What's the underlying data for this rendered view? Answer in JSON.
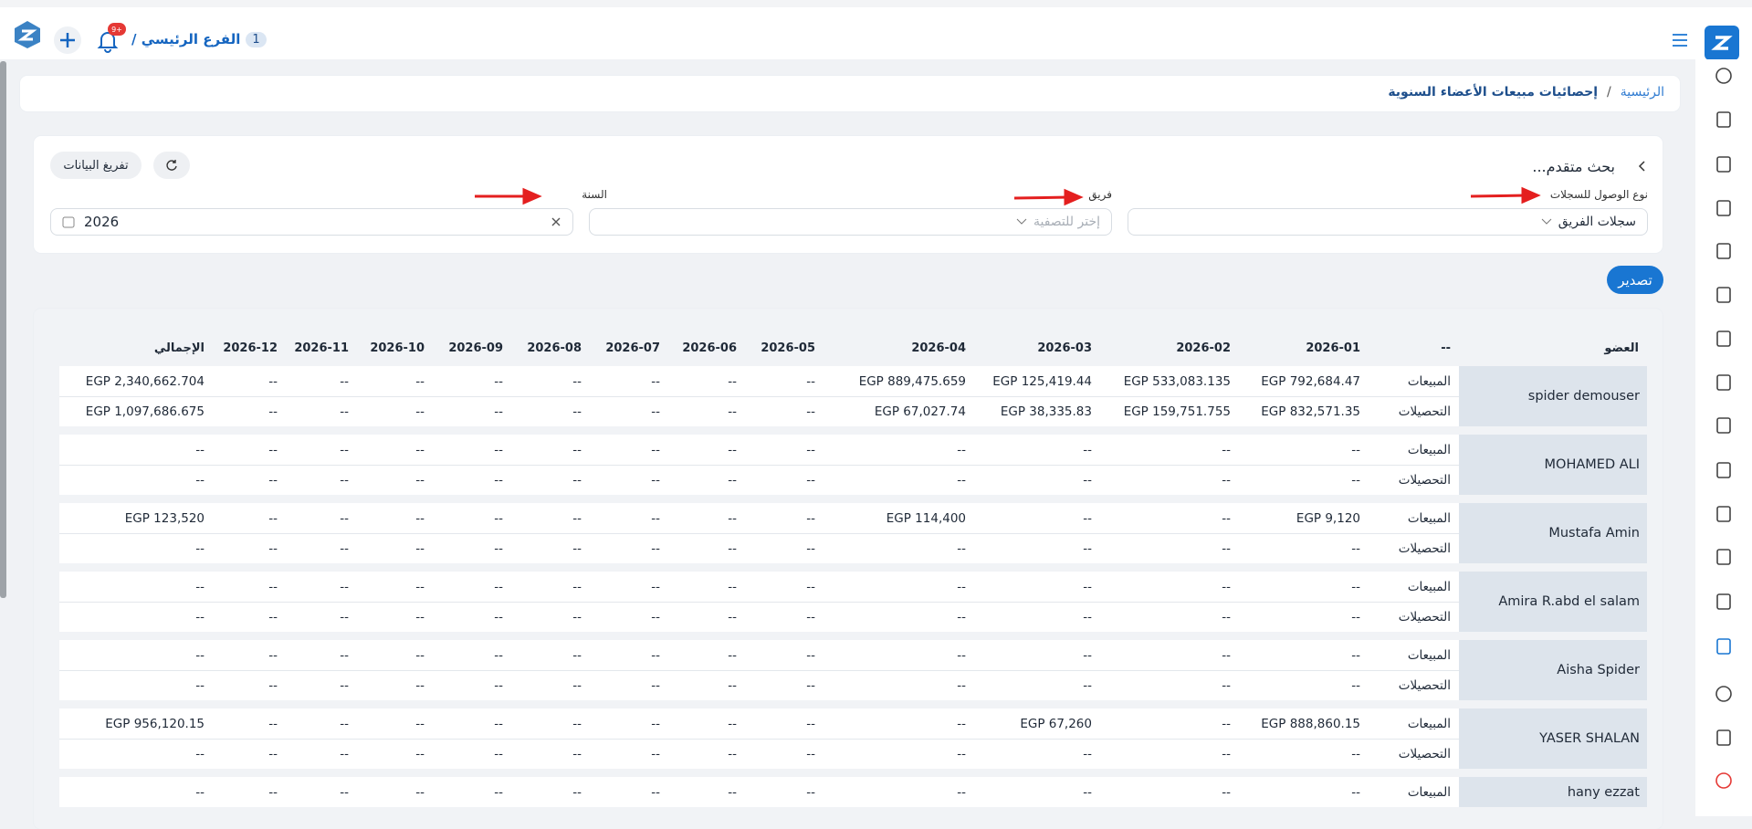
{
  "header": {
    "branch_number": "1",
    "branch_label": "الفرع الرئيسي /",
    "notification_badge": "9+"
  },
  "breadcrumb": {
    "home": "الرئيسية",
    "separator": "/",
    "current": "إحصائيات مبيعات الأعضاء السنوية"
  },
  "filters": {
    "title": "بحث متقدم...",
    "clear_button": "تفريغ البيانات",
    "fields": [
      {
        "label": "نوع الوصول للسجلات",
        "value": "سجلات الفريق"
      },
      {
        "label": "فريق",
        "placeholder": "إختر للتصفية"
      },
      {
        "label": "السنة",
        "value": "2026"
      }
    ]
  },
  "export_button": "تصدير",
  "table": {
    "columns": [
      "العضو",
      "--",
      "2026-01",
      "2026-02",
      "2026-03",
      "2026-04",
      "2026-05",
      "2026-06",
      "2026-07",
      "2026-08",
      "2026-09",
      "2026-10",
      "2026-11",
      "2026-12",
      "الإجمالي"
    ],
    "members": [
      {
        "name": "spider demouser",
        "rows": [
          {
            "type": "المبيعات",
            "cells": [
              "EGP 792,684.47",
              "EGP 533,083.135",
              "EGP 125,419.44",
              "EGP 889,475.659",
              "--",
              "--",
              "--",
              "--",
              "--",
              "--",
              "--",
              "--",
              "EGP 2,340,662.704"
            ]
          },
          {
            "type": "التحصيلات",
            "cells": [
              "EGP 832,571.35",
              "EGP 159,751.755",
              "EGP 38,335.83",
              "EGP 67,027.74",
              "--",
              "--",
              "--",
              "--",
              "--",
              "--",
              "--",
              "--",
              "EGP 1,097,686.675"
            ]
          }
        ]
      },
      {
        "name": "MOHAMED ALI",
        "rows": [
          {
            "type": "المبيعات",
            "cells": [
              "--",
              "--",
              "--",
              "--",
              "--",
              "--",
              "--",
              "--",
              "--",
              "--",
              "--",
              "--",
              "--"
            ]
          },
          {
            "type": "التحصيلات",
            "cells": [
              "--",
              "--",
              "--",
              "--",
              "--",
              "--",
              "--",
              "--",
              "--",
              "--",
              "--",
              "--",
              "--"
            ]
          }
        ]
      },
      {
        "name": "Mustafa Amin",
        "rows": [
          {
            "type": "المبيعات",
            "cells": [
              "EGP 9,120",
              "--",
              "--",
              "EGP 114,400",
              "--",
              "--",
              "--",
              "--",
              "--",
              "--",
              "--",
              "--",
              "EGP 123,520"
            ]
          },
          {
            "type": "التحصيلات",
            "cells": [
              "--",
              "--",
              "--",
              "--",
              "--",
              "--",
              "--",
              "--",
              "--",
              "--",
              "--",
              "--",
              "--"
            ]
          }
        ]
      },
      {
        "name": "Amira R.abd el salam",
        "rows": [
          {
            "type": "المبيعات",
            "cells": [
              "--",
              "--",
              "--",
              "--",
              "--",
              "--",
              "--",
              "--",
              "--",
              "--",
              "--",
              "--",
              "--"
            ]
          },
          {
            "type": "التحصيلات",
            "cells": [
              "--",
              "--",
              "--",
              "--",
              "--",
              "--",
              "--",
              "--",
              "--",
              "--",
              "--",
              "--",
              "--"
            ]
          }
        ]
      },
      {
        "name": "Aisha Spider",
        "rows": [
          {
            "type": "المبيعات",
            "cells": [
              "--",
              "--",
              "--",
              "--",
              "--",
              "--",
              "--",
              "--",
              "--",
              "--",
              "--",
              "--",
              "--"
            ]
          },
          {
            "type": "التحصيلات",
            "cells": [
              "--",
              "--",
              "--",
              "--",
              "--",
              "--",
              "--",
              "--",
              "--",
              "--",
              "--",
              "--",
              "--"
            ]
          }
        ]
      },
      {
        "name": "YASER SHALAN",
        "rows": [
          {
            "type": "المبيعات",
            "cells": [
              "EGP 888,860.15",
              "--",
              "EGP 67,260",
              "--",
              "--",
              "--",
              "--",
              "--",
              "--",
              "--",
              "--",
              "--",
              "EGP 956,120.15"
            ]
          },
          {
            "type": "التحصيلات",
            "cells": [
              "--",
              "--",
              "--",
              "--",
              "--",
              "--",
              "--",
              "--",
              "--",
              "--",
              "--",
              "--",
              "--"
            ]
          }
        ]
      },
      {
        "name": "hany ezzat",
        "rows": [
          {
            "type": "المبيعات",
            "cells": [
              "--",
              "--",
              "--",
              "--",
              "--",
              "--",
              "--",
              "--",
              "--",
              "--",
              "--",
              "--",
              "--"
            ]
          }
        ]
      }
    ]
  }
}
